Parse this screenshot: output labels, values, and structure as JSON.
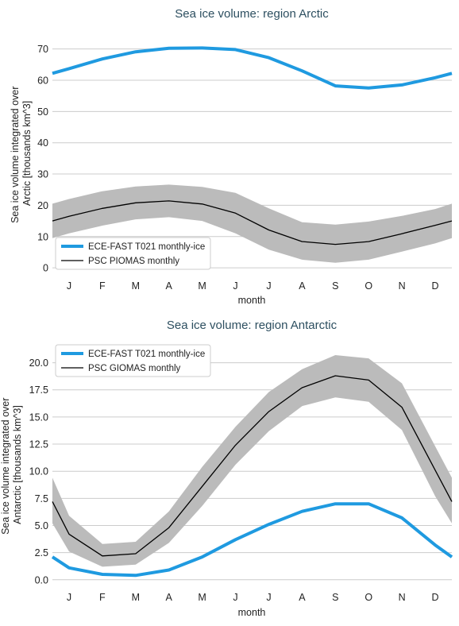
{
  "chart_data": [
    {
      "type": "line",
      "title": "Sea ice volume: region Arctic",
      "xlabel": "month",
      "ylabel": "Sea ice volume integrated over\nArctic [thousands km^3]",
      "categories": [
        "J",
        "F",
        "M",
        "A",
        "M",
        "J",
        "J",
        "A",
        "S",
        "O",
        "N",
        "D"
      ],
      "ylim": [
        -2,
        76
      ],
      "yticks": [
        "0",
        "10",
        "20",
        "30",
        "40",
        "50",
        "60",
        "70"
      ],
      "yticks_values": [
        0,
        10,
        20,
        30,
        40,
        50,
        60,
        70
      ],
      "grid": true,
      "legend_position": "bottom-left",
      "series": [
        {
          "name": "ECE-FAST T021 monthly-ice",
          "color": "#1f9ae0",
          "x": [
            0.5,
            1,
            2,
            3,
            4,
            5,
            6,
            7,
            8,
            9,
            10,
            11,
            12,
            12.5
          ],
          "values": [
            62.2,
            63.7,
            66.8,
            69.1,
            70.2,
            70.3,
            69.8,
            67.2,
            63.0,
            58.2,
            57.5,
            58.5,
            60.8,
            62.2
          ]
        },
        {
          "name": "PSC PIOMAS monthly",
          "color": "#000000",
          "x": [
            0.5,
            1,
            2,
            3,
            4,
            5,
            6,
            7,
            8,
            9,
            10,
            11,
            12,
            12.5
          ],
          "values": [
            15.0,
            16.5,
            19.0,
            20.8,
            21.4,
            20.4,
            17.5,
            12.1,
            8.4,
            7.5,
            8.4,
            10.9,
            13.6,
            15.0
          ],
          "band_upper": [
            20.5,
            22.0,
            24.5,
            26.0,
            26.6,
            25.9,
            24.0,
            19.0,
            14.6,
            13.8,
            14.8,
            16.6,
            18.8,
            20.5
          ],
          "band_lower": [
            9.5,
            11.0,
            13.5,
            15.5,
            16.2,
            15.0,
            11.0,
            5.8,
            2.6,
            1.6,
            2.6,
            5.2,
            7.8,
            9.5
          ],
          "band_color": "#bbbbbb"
        }
      ]
    },
    {
      "type": "line",
      "title": "Sea ice volume: region Antarctic",
      "xlabel": "month",
      "ylabel": "Sea ice volume integrated over\nAntarctic [thousands km^3]",
      "categories": [
        "J",
        "F",
        "M",
        "A",
        "M",
        "J",
        "J",
        "A",
        "S",
        "O",
        "N",
        "D"
      ],
      "ylim": [
        -0.6,
        21.8
      ],
      "yticks": [
        "0.0",
        "2.5",
        "5.0",
        "7.5",
        "10.0",
        "12.5",
        "15.0",
        "17.5",
        "20.0"
      ],
      "yticks_values": [
        0,
        2.5,
        5,
        7.5,
        10,
        12.5,
        15,
        17.5,
        20
      ],
      "grid": true,
      "legend_position": "top-left",
      "series": [
        {
          "name": "ECE-FAST T021 monthly-ice",
          "color": "#1f9ae0",
          "x": [
            0.5,
            1,
            2,
            3,
            4,
            5,
            6,
            7,
            8,
            9,
            10,
            11,
            12,
            12.5
          ],
          "values": [
            2.1,
            1.1,
            0.5,
            0.4,
            0.9,
            2.1,
            3.7,
            5.1,
            6.3,
            7.0,
            7.0,
            5.7,
            3.2,
            2.1
          ]
        },
        {
          "name": "PSC GIOMAS monthly",
          "color": "#000000",
          "x": [
            0.5,
            1,
            2,
            3,
            4,
            5,
            6,
            7,
            8,
            9,
            10,
            11,
            12,
            12.5
          ],
          "values": [
            7.2,
            4.2,
            2.2,
            2.4,
            4.8,
            8.6,
            12.4,
            15.5,
            17.7,
            18.8,
            18.4,
            15.9,
            10.1,
            7.2
          ],
          "band_upper": [
            9.4,
            5.9,
            3.3,
            3.5,
            6.3,
            10.4,
            14.1,
            17.3,
            19.4,
            20.7,
            20.4,
            18.1,
            12.3,
            9.4
          ],
          "band_lower": [
            5.2,
            2.6,
            1.2,
            1.4,
            3.4,
            6.8,
            10.6,
            13.7,
            16.0,
            16.8,
            16.4,
            13.8,
            7.7,
            5.2
          ],
          "band_color": "#bbbbbb"
        }
      ]
    }
  ]
}
